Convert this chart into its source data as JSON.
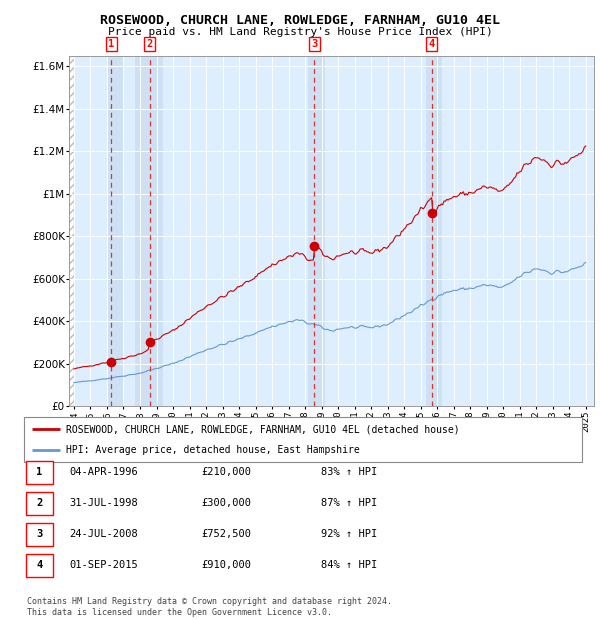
{
  "title": "ROSEWOOD, CHURCH LANE, ROWLEDGE, FARNHAM, GU10 4EL",
  "subtitle": "Price paid vs. HM Land Registry's House Price Index (HPI)",
  "footer": "Contains HM Land Registry data © Crown copyright and database right 2024.\nThis data is licensed under the Open Government Licence v3.0.",
  "legend_line1": "ROSEWOOD, CHURCH LANE, ROWLEDGE, FARNHAM, GU10 4EL (detached house)",
  "legend_line2": "HPI: Average price, detached house, East Hampshire",
  "transactions": [
    {
      "num": 1,
      "date": "04-APR-1996",
      "price": 210000,
      "pct": "83% ↑ HPI",
      "year": 1996.25
    },
    {
      "num": 2,
      "date": "31-JUL-1998",
      "price": 300000,
      "pct": "87% ↑ HPI",
      "year": 1998.58
    },
    {
      "num": 3,
      "date": "24-JUL-2008",
      "price": 752500,
      "pct": "92% ↑ HPI",
      "year": 2008.56
    },
    {
      "num": 4,
      "date": "01-SEP-2015",
      "price": 910000,
      "pct": "84% ↑ HPI",
      "year": 2015.67
    }
  ],
  "hpi_color": "#6699cc",
  "price_color": "#cc0000",
  "dashed_color": "#dd3333",
  "background_color": "#ddeeff",
  "ylim": [
    0,
    1650000
  ],
  "yticks": [
    0,
    200000,
    400000,
    600000,
    800000,
    1000000,
    1200000,
    1400000,
    1600000
  ],
  "xlim_start": 1993.7,
  "xlim_end": 2025.5,
  "xticks": [
    1994,
    1995,
    1996,
    1997,
    1998,
    1999,
    2000,
    2001,
    2002,
    2003,
    2004,
    2005,
    2006,
    2007,
    2008,
    2009,
    2010,
    2011,
    2012,
    2013,
    2014,
    2015,
    2016,
    2017,
    2018,
    2019,
    2020,
    2021,
    2022,
    2023,
    2024,
    2025
  ],
  "highlight_spans": [
    [
      1996.0,
      1997.0
    ],
    [
      1997.7,
      1999.4
    ],
    [
      2008.2,
      2009.2
    ],
    [
      2015.3,
      2016.3
    ]
  ]
}
